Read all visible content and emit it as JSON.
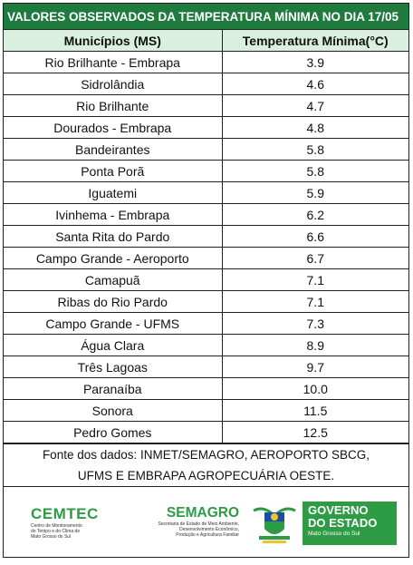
{
  "title": "VALORES OBSERVADOS DA TEMPERATURA MÍNIMA NO DIA 17/05",
  "table": {
    "headers": [
      "Municípios (MS)",
      "Temperatura Mínima(°C)"
    ],
    "rows": [
      [
        "Rio Brilhante - Embrapa",
        "3.9"
      ],
      [
        "Sidrolândia",
        "4.6"
      ],
      [
        "Rio Brilhante",
        "4.7"
      ],
      [
        "Dourados - Embrapa",
        "4.8"
      ],
      [
        "Bandeirantes",
        "5.8"
      ],
      [
        "Ponta Porã",
        "5.8"
      ],
      [
        "Iguatemi",
        "5.9"
      ],
      [
        "Ivinhema - Embrapa",
        "6.2"
      ],
      [
        "Santa Rita do Pardo",
        "6.6"
      ],
      [
        "Campo Grande - Aeroporto",
        "6.7"
      ],
      [
        "Camapuã",
        "7.1"
      ],
      [
        "Ribas do Rio Pardo",
        "7.1"
      ],
      [
        "Campo Grande - UFMS",
        "7.3"
      ],
      [
        "Água Clara",
        "8.9"
      ],
      [
        "Três Lagoas",
        "9.7"
      ],
      [
        "Paranaíba",
        "10.0"
      ],
      [
        "Sonora",
        "11.5"
      ],
      [
        "Pedro Gomes",
        "12.5"
      ]
    ]
  },
  "source": {
    "line1": "Fonte dos dados: INMET/SEMAGRO, AEROPORTO SBCG,",
    "line2": "UFMS E EMBRAPA AGROPECUÁRIA OESTE."
  },
  "logos": {
    "cemtec": {
      "name": "CEMTEC",
      "sub1": "Centro de Monitoramento",
      "sub2": "do Tempo e do Clima de",
      "sub3": "Mato Grosso do Sul"
    },
    "semagro": {
      "name": "SEMAGRO",
      "sub1": "Secretaria de Estado de Meio Ambiente,",
      "sub2": "Desenvolvimento Econômico,",
      "sub3": "Produção e Agricultura Familiar"
    },
    "governo": {
      "line1": "GOVERNO",
      "line2": "DO ESTADO",
      "line3": "Mato Grosso do Sul"
    }
  },
  "colors": {
    "title_bg": "#1f7a3e",
    "header_bg": "#d9efe0",
    "brand_green": "#2e9b45"
  }
}
